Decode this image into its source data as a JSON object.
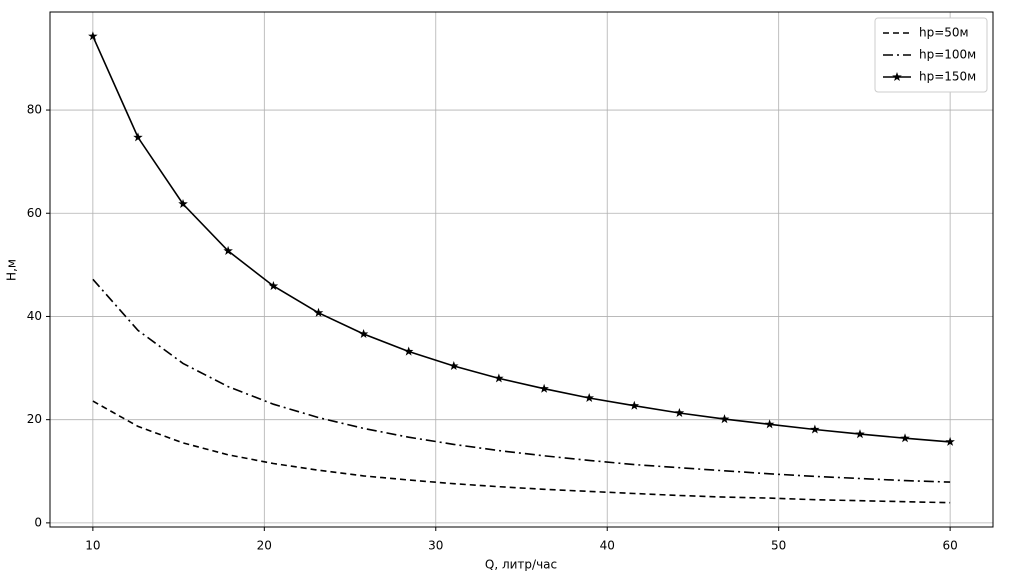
{
  "chart_data": {
    "type": "line",
    "xlabel": "Q, литр/час",
    "ylabel": "Н,м",
    "x": [
      10,
      12.63,
      15.26,
      17.89,
      20.53,
      23.16,
      25.79,
      28.42,
      31.05,
      33.68,
      36.32,
      38.95,
      41.58,
      44.21,
      46.84,
      49.47,
      52.11,
      54.74,
      57.37,
      60
    ],
    "series": [
      {
        "name": "hp=50м",
        "color": "#000000",
        "linestyle": "--",
        "marker": null,
        "values": [
          23.6,
          18.7,
          15.5,
          13.2,
          11.5,
          10.2,
          9.1,
          8.3,
          7.6,
          7.0,
          6.5,
          6.1,
          5.7,
          5.3,
          5.0,
          4.8,
          4.5,
          4.3,
          4.1,
          3.9
        ]
      },
      {
        "name": "hp=100м",
        "color": "#000000",
        "linestyle": "-.",
        "marker": null,
        "values": [
          47.2,
          37.3,
          30.9,
          26.4,
          23.0,
          20.4,
          18.3,
          16.6,
          15.2,
          14.0,
          13.0,
          12.1,
          11.3,
          10.7,
          10.1,
          9.5,
          9.0,
          8.6,
          8.2,
          7.9
        ]
      },
      {
        "name": "hp=150м",
        "color": "#000000",
        "linestyle": "-",
        "marker": "*",
        "values": [
          94.3,
          74.7,
          61.8,
          52.7,
          45.9,
          40.7,
          36.6,
          33.2,
          30.4,
          28.0,
          26.0,
          24.2,
          22.7,
          21.3,
          20.1,
          19.1,
          18.1,
          17.2,
          16.4,
          15.7
        ]
      }
    ],
    "xlim": [
      7.5,
      62.5
    ],
    "ylim": [
      -0.8,
      99
    ],
    "xticks": [
      10,
      20,
      30,
      40,
      50,
      60
    ],
    "yticks": [
      0,
      20,
      40,
      60,
      80
    ],
    "grid": true,
    "legend": "upper right"
  }
}
